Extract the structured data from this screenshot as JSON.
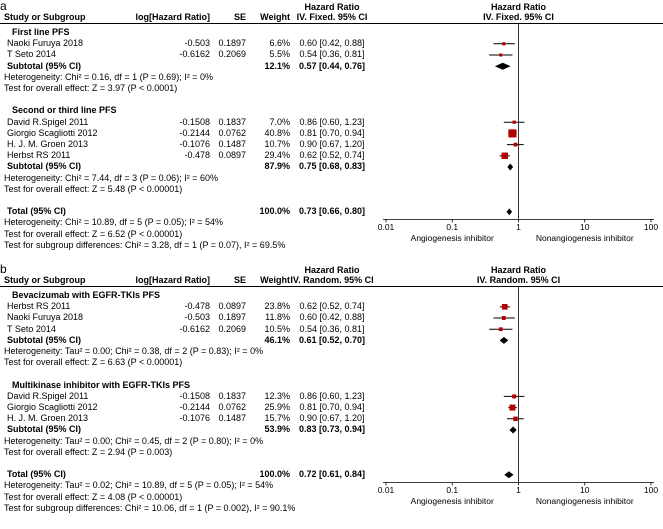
{
  "figure": {
    "type": "forest-plot-meta-analysis",
    "panels_count": 2
  },
  "chart_data": {
    "type": "forest",
    "colors": {
      "marker": "#b30000",
      "diamond": "#000000",
      "ci_line": "#000000",
      "axis": "#000000"
    },
    "panels": [
      {
        "label": "a",
        "header": {
          "hr_label": "Hazard Ratio",
          "col_study": "Study or Subgroup",
          "col_loghr": "log[Hazard Ratio]",
          "col_se": "SE",
          "col_weight": "Weight",
          "ci_method": "IV. Fixed. 95% CI"
        },
        "rows": [
          {
            "kind": "group",
            "text": "First line PFS"
          },
          {
            "kind": "study",
            "name": "Naoki Furuya 2018",
            "loghr": "-0.503",
            "se": "0.1897",
            "weight": "6.6%",
            "hr": 0.6,
            "lo": 0.42,
            "hi": 0.88,
            "ci": "0.60 [0.42, 0.88]"
          },
          {
            "kind": "study",
            "name": "T Seto 2014",
            "loghr": "-0.6162",
            "se": "0.2069",
            "weight": "5.5%",
            "hr": 0.54,
            "lo": 0.36,
            "hi": 0.81,
            "ci": "0.54 [0.36, 0.81]"
          },
          {
            "kind": "subtotal",
            "name": "Subtotal (95% CI)",
            "weight": "12.1%",
            "hr": 0.57,
            "lo": 0.44,
            "hi": 0.76,
            "ci": "0.57 [0.44, 0.76]"
          },
          {
            "kind": "note",
            "text": "Heterogeneity: Chi² = 0.16, df = 1 (P = 0.69); I² = 0%"
          },
          {
            "kind": "note",
            "text": "Test for overall effect: Z = 3.97 (P < 0.0001)"
          },
          {
            "kind": "spacer"
          },
          {
            "kind": "group",
            "text": "Second or third line PFS"
          },
          {
            "kind": "study",
            "name": "David R.Spigel 2011",
            "loghr": "-0.1508",
            "se": "0.1837",
            "weight": "7.0%",
            "hr": 0.86,
            "lo": 0.6,
            "hi": 1.23,
            "ci": "0.86 [0.60, 1.23]"
          },
          {
            "kind": "study",
            "name": "Giorgio Scagliotti 2012",
            "loghr": "-0.2144",
            "se": "0.0762",
            "weight": "40.8%",
            "hr": 0.81,
            "lo": 0.7,
            "hi": 0.94,
            "ci": "0.81 [0.70, 0.94]"
          },
          {
            "kind": "study",
            "name": "H. J. M. Groen 2013",
            "loghr": "-0.1076",
            "se": "0.1487",
            "weight": "10.7%",
            "hr": 0.9,
            "lo": 0.67,
            "hi": 1.2,
            "ci": "0.90 [0.67, 1.20]"
          },
          {
            "kind": "study",
            "name": "Herbst RS 2011",
            "loghr": "-0.478",
            "se": "0.0897",
            "weight": "29.4%",
            "hr": 0.62,
            "lo": 0.52,
            "hi": 0.74,
            "ci": "0.62 [0.52, 0.74]"
          },
          {
            "kind": "subtotal",
            "name": "Subtotal (95% CI)",
            "weight": "87.9%",
            "hr": 0.75,
            "lo": 0.68,
            "hi": 0.83,
            "ci": "0.75 [0.68, 0.83]"
          },
          {
            "kind": "note",
            "text": "Heterogeneity: Chi² = 7.44, df = 3 (P = 0.06); I² = 60%"
          },
          {
            "kind": "note",
            "text": "Test for overall effect: Z = 5.48 (P < 0.00001)"
          },
          {
            "kind": "spacer"
          },
          {
            "kind": "total",
            "name": "Total (95% CI)",
            "weight": "100.0%",
            "hr": 0.73,
            "lo": 0.66,
            "hi": 0.8,
            "ci": "0.73 [0.66, 0.80]"
          },
          {
            "kind": "note",
            "text": "Heterogeneity: Chi² = 10.89, df = 5 (P = 0.05); I² = 54%"
          },
          {
            "kind": "note",
            "text": "Test for overall effect: Z = 6.52 (P < 0.00001)"
          },
          {
            "kind": "note",
            "text": "Test for subgroup differences: Chi² = 3.28, df = 1 (P = 0.07), I² = 69.5%"
          }
        ],
        "axis": {
          "ticks": [
            "0.01",
            "0.1",
            "1",
            "10",
            "100"
          ],
          "tick_values": [
            0.01,
            0.1,
            1,
            10,
            100
          ],
          "left_label": "Angiogenesis inhibitor",
          "right_label": "Nonangiogenesis inhibitor"
        }
      },
      {
        "label": "b",
        "header": {
          "hr_label": "Hazard Ratio",
          "col_study": "Study or Subgroup",
          "col_loghr": "log[Hazard Ratio]",
          "col_se": "SE",
          "col_weight": "Weight",
          "ci_method": "IV. Random. 95% CI"
        },
        "rows": [
          {
            "kind": "group",
            "text": "Bevacizumab with EGFR-TKIs PFS"
          },
          {
            "kind": "study",
            "name": "Herbst RS 2011",
            "loghr": "-0.478",
            "se": "0.0897",
            "weight": "23.8%",
            "hr": 0.62,
            "lo": 0.52,
            "hi": 0.74,
            "ci": "0.62 [0.52, 0.74]"
          },
          {
            "kind": "study",
            "name": "Naoki Furuya 2018",
            "loghr": "-0.503",
            "se": "0.1897",
            "weight": "11.8%",
            "hr": 0.6,
            "lo": 0.42,
            "hi": 0.88,
            "ci": "0.60 [0.42, 0.88]"
          },
          {
            "kind": "study",
            "name": "T Seto 2014",
            "loghr": "-0.6162",
            "se": "0.2069",
            "weight": "10.5%",
            "hr": 0.54,
            "lo": 0.36,
            "hi": 0.81,
            "ci": "0.54 [0.36, 0.81]"
          },
          {
            "kind": "subtotal",
            "name": "Subtotal (95% CI)",
            "weight": "46.1%",
            "hr": 0.61,
            "lo": 0.52,
            "hi": 0.7,
            "ci": "0.61 [0.52, 0.70]"
          },
          {
            "kind": "note",
            "text": "Heterogeneity: Tau² = 0.00; Chi² = 0.38, df = 2 (P = 0.83); I² = 0%"
          },
          {
            "kind": "note",
            "text": "Test for overall effect: Z = 6.63 (P < 0.00001)"
          },
          {
            "kind": "spacer"
          },
          {
            "kind": "group",
            "text": "Multikinase inhibitor with EGFR-TKIs PFS"
          },
          {
            "kind": "study",
            "name": "David R.Spigel 2011",
            "loghr": "-0.1508",
            "se": "0.1837",
            "weight": "12.3%",
            "hr": 0.86,
            "lo": 0.6,
            "hi": 1.23,
            "ci": "0.86 [0.60, 1.23]"
          },
          {
            "kind": "study",
            "name": "Giorgio Scagliotti 2012",
            "loghr": "-0.2144",
            "se": "0.0762",
            "weight": "25.9%",
            "hr": 0.81,
            "lo": 0.7,
            "hi": 0.94,
            "ci": "0.81 [0.70, 0.94]"
          },
          {
            "kind": "study",
            "name": "H. J. M. Groen 2013",
            "loghr": "-0.1076",
            "se": "0.1487",
            "weight": "15.7%",
            "hr": 0.9,
            "lo": 0.67,
            "hi": 1.2,
            "ci": "0.90 [0.67, 1.20]"
          },
          {
            "kind": "subtotal",
            "name": "Subtotal (95% CI)",
            "weight": "53.9%",
            "hr": 0.83,
            "lo": 0.73,
            "hi": 0.94,
            "ci": "0.83 [0.73, 0.94]"
          },
          {
            "kind": "note",
            "text": "Heterogeneity: Tau² = 0.00; Chi² = 0.45, df = 2 (P = 0.80); I² = 0%"
          },
          {
            "kind": "note",
            "text": "Test for overall effect: Z = 2.94 (P = 0.003)"
          },
          {
            "kind": "spacer"
          },
          {
            "kind": "total",
            "name": "Total (95% CI)",
            "weight": "100.0%",
            "hr": 0.72,
            "lo": 0.61,
            "hi": 0.84,
            "ci": "0.72 [0.61, 0.84]"
          },
          {
            "kind": "note",
            "text": "Heterogeneity: Tau² = 0.02; Chi² = 10.89, df = 5 (P = 0.05); I² = 54%"
          },
          {
            "kind": "note",
            "text": "Test for overall effect: Z = 4.08 (P < 0.00001)"
          },
          {
            "kind": "note",
            "text": "Test for subgroup differences: Chi² = 10.06, df = 1 (P = 0.002), I² = 90.1%"
          }
        ],
        "axis": {
          "ticks": [
            "0.01",
            "0.1",
            "1",
            "10",
            "100"
          ],
          "tick_values": [
            0.01,
            0.1,
            1,
            10,
            100
          ],
          "left_label": "Angiogenesis inhibitor",
          "right_label": "Nonangiogenesis inhibitor"
        }
      }
    ]
  }
}
